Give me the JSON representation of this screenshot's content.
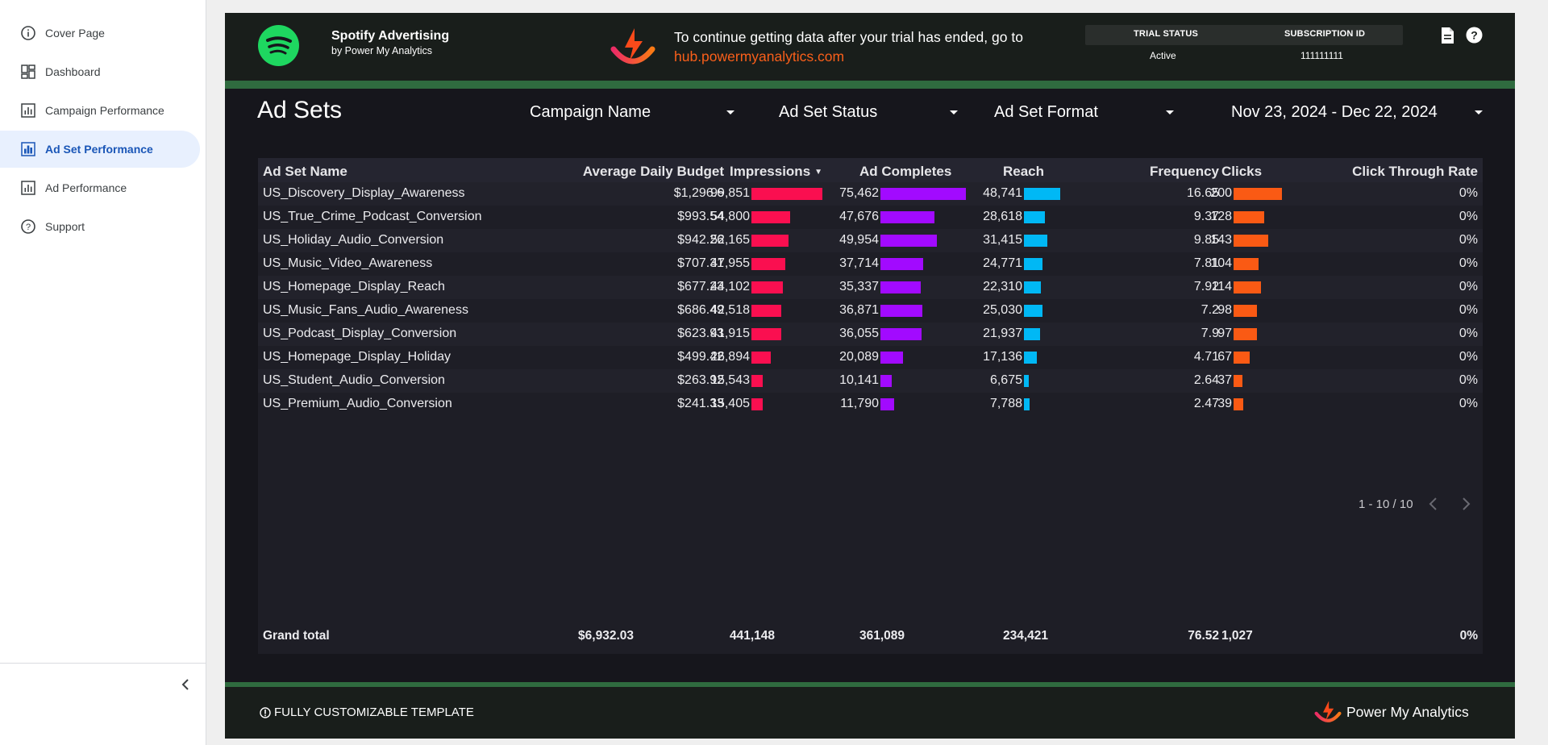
{
  "sidebar": {
    "items": [
      {
        "label": "Cover Page",
        "icon": "info-icon",
        "active": false
      },
      {
        "label": "Dashboard",
        "icon": "dashboard-icon",
        "active": false
      },
      {
        "label": "Campaign Performance",
        "icon": "bar-chart-icon",
        "active": false
      },
      {
        "label": "Ad Set Performance",
        "icon": "bar-chart-icon",
        "active": true
      },
      {
        "label": "Ad Performance",
        "icon": "bar-chart-icon",
        "active": false
      },
      {
        "label": "Support",
        "icon": "help-icon",
        "active": false
      }
    ],
    "collapse_icon": "chevron-left-icon"
  },
  "header": {
    "brand_title": "Spotify Advertising",
    "brand_subtitle": "by Power My Analytics",
    "trial_message": "To continue getting data after your trial has ended, go to",
    "trial_link": "hub.powermyanalytics.com",
    "trial_status_label": "TRIAL STATUS",
    "trial_status_value": "Active",
    "subscription_label": "SUBSCRIPTION ID",
    "subscription_value": "111111111"
  },
  "page": {
    "title": "Ad Sets",
    "filters": {
      "campaign": "Campaign Name",
      "status": "Ad Set Status",
      "format": "Ad Set Format",
      "date_range": "Nov 23, 2024 - Dec 22, 2024"
    }
  },
  "table": {
    "columns": [
      "Ad Set Name",
      "Average Daily Budget",
      "Impressions",
      "Ad Completes",
      "Reach",
      "Frequency",
      "Clicks",
      "Click Through Rate"
    ],
    "sort_indicator": "▼",
    "rows": [
      {
        "name": "US_Discovery_Display_Awareness",
        "budget": "$1,296.6",
        "impressions": "99,851",
        "completes": "75,462",
        "reach": "48,741",
        "frequency": "16.65",
        "clicks": "200",
        "ctr": "0%"
      },
      {
        "name": "US_True_Crime_Podcast_Conversion",
        "budget": "$993.54",
        "impressions": "54,800",
        "completes": "47,676",
        "reach": "28,618",
        "frequency": "9.37",
        "clicks": "128",
        "ctr": "0%"
      },
      {
        "name": "US_Holiday_Audio_Conversion",
        "budget": "$942.26",
        "impressions": "52,165",
        "completes": "49,954",
        "reach": "31,415",
        "frequency": "9.85",
        "clicks": "143",
        "ctr": "0%"
      },
      {
        "name": "US_Music_Video_Awareness",
        "budget": "$707.31",
        "impressions": "47,955",
        "completes": "37,714",
        "reach": "24,771",
        "frequency": "7.81",
        "clicks": "104",
        "ctr": "0%"
      },
      {
        "name": "US_Homepage_Display_Reach",
        "budget": "$677.23",
        "impressions": "44,102",
        "completes": "35,337",
        "reach": "22,310",
        "frequency": "7.92",
        "clicks": "114",
        "ctr": "0%"
      },
      {
        "name": "US_Music_Fans_Audio_Awareness",
        "budget": "$686.49",
        "impressions": "42,518",
        "completes": "36,871",
        "reach": "25,030",
        "frequency": "7.2",
        "clicks": "98",
        "ctr": "0%"
      },
      {
        "name": "US_Podcast_Display_Conversion",
        "budget": "$623.93",
        "impressions": "41,915",
        "completes": "36,055",
        "reach": "21,937",
        "frequency": "7.9",
        "clicks": "97",
        "ctr": "0%"
      },
      {
        "name": "US_Homepage_Display_Holiday",
        "budget": "$499.42",
        "impressions": "26,894",
        "completes": "20,089",
        "reach": "17,136",
        "frequency": "4.71",
        "clicks": "67",
        "ctr": "0%"
      },
      {
        "name": "US_Student_Audio_Conversion",
        "budget": "$263.92",
        "impressions": "15,543",
        "completes": "10,141",
        "reach": "6,675",
        "frequency": "2.64",
        "clicks": "37",
        "ctr": "0%"
      },
      {
        "name": "US_Premium_Audio_Conversion",
        "budget": "$241.33",
        "impressions": "15,405",
        "completes": "11,790",
        "reach": "7,788",
        "frequency": "2.47",
        "clicks": "39",
        "ctr": "0%"
      }
    ],
    "grand_total": {
      "label": "Grand total",
      "budget": "$6,932.03",
      "impressions": "441,148",
      "completes": "361,089",
      "reach": "234,421",
      "frequency": "76.52",
      "clicks": "1,027",
      "ctr": "0%"
    },
    "pagination": "1 - 10 / 10",
    "bar_colors": {
      "impressions": "#fa0f50",
      "completes": "#a20aff",
      "reach": "#00b8f5",
      "clicks": "#fa5a14"
    }
  },
  "footer": {
    "note": "FULLY CUSTOMIZABLE TEMPLATE",
    "brand": "Power My Analytics"
  },
  "colors": {
    "spotify_green": "#1ed760",
    "accent_bar": "#2f6b3f",
    "link_orange": "#fa5f1a",
    "active_nav": "#e8f0fe"
  }
}
